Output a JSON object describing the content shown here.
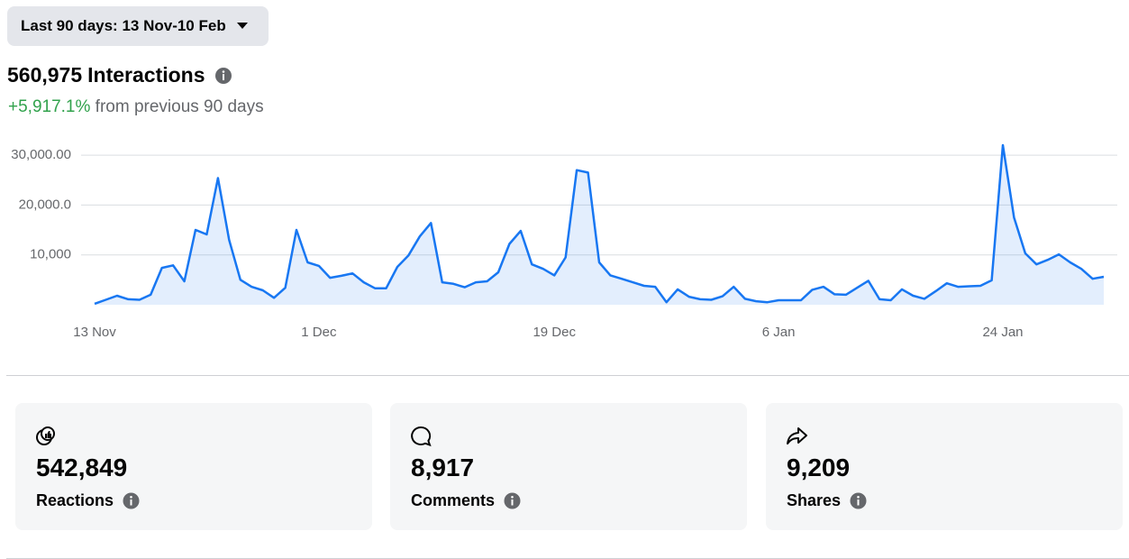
{
  "date_filter": "Last 90 days: 13 Nov-10 Feb",
  "summary": {
    "value": "560,975",
    "label": "Interactions",
    "change": "+5,917.1%",
    "change_text": "from previous 90 days"
  },
  "chart_data": {
    "type": "line",
    "color": "#1877f2",
    "grid": true,
    "categories": [
      "13 Nov",
      null,
      null,
      null,
      null,
      null,
      null,
      null,
      null,
      null,
      null,
      null,
      null,
      null,
      null,
      null,
      null,
      null,
      null,
      null,
      "1 Dec",
      null,
      null,
      null,
      null,
      null,
      null,
      null,
      null,
      null,
      null,
      null,
      null,
      null,
      null,
      null,
      null,
      null,
      null,
      null,
      null,
      "19 Dec",
      null,
      null,
      null,
      null,
      null,
      null,
      null,
      null,
      null,
      null,
      null,
      null,
      null,
      null,
      null,
      null,
      null,
      null,
      null,
      "6 Jan",
      null,
      null,
      null,
      null,
      null,
      null,
      null,
      null,
      null,
      null,
      null,
      null,
      null,
      null,
      null,
      null,
      null,
      null,
      null,
      "24 Jan",
      null,
      null,
      null,
      null,
      null,
      null,
      null,
      null,
      null
    ],
    "values": [
      200,
      1000,
      1800,
      1100,
      1000,
      2000,
      7400,
      7900,
      4700,
      15000,
      14100,
      25400,
      13000,
      5000,
      3600,
      2900,
      1400,
      3400,
      15000,
      8500,
      7800,
      5400,
      5800,
      6300,
      4500,
      3300,
      3300,
      7600,
      9900,
      13700,
      16400,
      4500,
      4200,
      3500,
      4500,
      4700,
      6500,
      12200,
      14800,
      8100,
      7200,
      5900,
      9500,
      27000,
      26500,
      8500,
      5900,
      5200,
      4500,
      3800,
      3600,
      500,
      3100,
      1600,
      1100,
      1000,
      1700,
      3600,
      1200,
      700,
      500,
      900,
      900,
      900,
      3000,
      3600,
      2100,
      2000,
      3400,
      4800,
      1100,
      900,
      3100,
      1800,
      1200,
      2700,
      4300,
      3600,
      3700,
      3800,
      4900,
      32000,
      17500,
      10300,
      8100,
      9000,
      10100,
      8500,
      7200,
      5200,
      5600
    ],
    "ylim": [
      0,
      32000
    ],
    "yticks": [
      {
        "value": 10000,
        "label": "10,000"
      },
      {
        "value": 20000,
        "label": "20,000.0"
      },
      {
        "value": 30000,
        "label": "30,000.00"
      }
    ]
  },
  "cards": [
    {
      "value": "542,849",
      "label": "Reactions"
    },
    {
      "value": "8,917",
      "label": "Comments"
    },
    {
      "value": "9,209",
      "label": "Shares"
    }
  ]
}
